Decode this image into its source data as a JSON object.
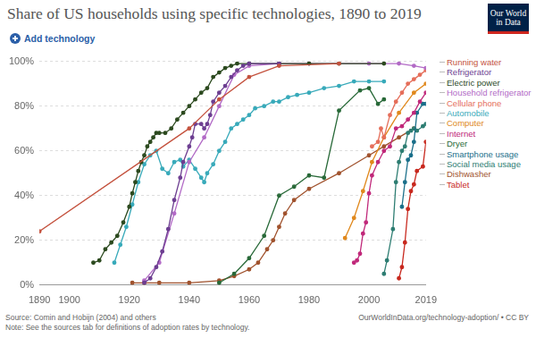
{
  "chart_data": {
    "type": "line",
    "title": "Share of US households using specific technologies, 1890 to 2019",
    "xlim": [
      1890,
      2019
    ],
    "xticks": [
      1890,
      1900,
      1920,
      1940,
      1960,
      1980,
      2000,
      2019
    ],
    "ylim": [
      0,
      100
    ],
    "yticks": [
      {
        "value": 0,
        "label": "0%"
      },
      {
        "value": 20,
        "label": "20%"
      },
      {
        "value": 40,
        "label": "40%"
      },
      {
        "value": 60,
        "label": "60%"
      },
      {
        "value": 80,
        "label": "80%"
      },
      {
        "value": 100,
        "label": "100%"
      }
    ],
    "grid": true,
    "marker": "circle",
    "series": [
      {
        "name": "Running water",
        "color": "#c4523e",
        "x": [
          1890,
          1940,
          1950,
          1960,
          1970,
          1990
        ],
        "values": [
          24,
          70,
          83,
          93,
          98,
          99
        ]
      },
      {
        "name": "Refrigerator",
        "color": "#6d3e91",
        "x": [
          1925,
          1927,
          1929,
          1931,
          1933,
          1935,
          1937,
          1938,
          1940,
          1941,
          1942,
          1944,
          1945,
          1946,
          1947,
          1948,
          1950,
          1952,
          1954,
          1956,
          1958,
          1960,
          1970
        ],
        "values": [
          1,
          3,
          8,
          15,
          25,
          38,
          48,
          55,
          62,
          66,
          72,
          72,
          70,
          72,
          76,
          82,
          86,
          89,
          93,
          96,
          98,
          99,
          99
        ]
      },
      {
        "name": "Electric power",
        "color": "#2c4a1f",
        "x": [
          1908,
          1910,
          1912,
          1914,
          1916,
          1918,
          1920,
          1921,
          1922,
          1923,
          1924,
          1925,
          1926,
          1927,
          1928,
          1929,
          1930,
          1932,
          1934,
          1936,
          1938,
          1940,
          1942,
          1944,
          1946,
          1948,
          1950,
          1952,
          1954,
          1956,
          1960,
          1970,
          1980,
          1990,
          2005
        ],
        "values": [
          10,
          11,
          16,
          19,
          22,
          28,
          35,
          41,
          46,
          51,
          55,
          58,
          62,
          64,
          66,
          68,
          68,
          68,
          70,
          74,
          77,
          80,
          83,
          86,
          88,
          93,
          95,
          97,
          98,
          99,
          99,
          99,
          99,
          99,
          99
        ]
      },
      {
        "name": "Household refrigerator",
        "color": "#b26ac6",
        "x": [
          1925,
          1930,
          1935,
          1940,
          1945,
          1950,
          1955,
          1960,
          1970,
          1980,
          2000,
          2010,
          2015,
          2019
        ],
        "values": [
          2,
          10,
          32,
          55,
          66,
          80,
          94,
          98,
          99,
          99,
          99,
          99,
          98,
          97
        ]
      },
      {
        "name": "Cellular phone",
        "color": "#e56e5a",
        "x": [
          2001,
          2003,
          2004,
          2005,
          2007,
          2009,
          2011,
          2013,
          2015,
          2017,
          2019
        ],
        "values": [
          62,
          64,
          70,
          66,
          76,
          82,
          86,
          90,
          92,
          94,
          96
        ]
      },
      {
        "name": "Automobile",
        "color": "#38aaba",
        "x": [
          1915,
          1917,
          1919,
          1921,
          1923,
          1925,
          1927,
          1929,
          1931,
          1933,
          1935,
          1937,
          1938,
          1940,
          1942,
          1944,
          1945,
          1946,
          1948,
          1950,
          1952,
          1954,
          1956,
          1958,
          1960,
          1962,
          1965,
          1968,
          1970,
          1973,
          1976,
          1980,
          1985,
          1990,
          1995,
          2000,
          2005
        ],
        "values": [
          10,
          18,
          26,
          36,
          46,
          54,
          58,
          60,
          52,
          50,
          55,
          56,
          53,
          56,
          52,
          48,
          46,
          50,
          54,
          60,
          64,
          70,
          72,
          74,
          76,
          79,
          80,
          82,
          82,
          84,
          85,
          86,
          88,
          89,
          91,
          91,
          91
        ]
      },
      {
        "name": "Computer",
        "color": "#e0881c",
        "x": [
          1992,
          1995,
          1998,
          2001,
          2005,
          2010,
          2015,
          2019
        ],
        "values": [
          21,
          30,
          42,
          55,
          66,
          77,
          86,
          90
        ]
      },
      {
        "name": "Internet",
        "color": "#c0287a",
        "x": [
          1995,
          1996,
          1997,
          1998,
          1999,
          2000,
          2001,
          2003,
          2005,
          2007,
          2009,
          2011,
          2013,
          2015,
          2017,
          2019
        ],
        "values": [
          10,
          11,
          14,
          23,
          28,
          41,
          49,
          55,
          60,
          62,
          70,
          71,
          74,
          77,
          82,
          86
        ]
      },
      {
        "name": "Dryer",
        "color": "#286938",
        "x": [
          1950,
          1955,
          1960,
          1965,
          1970,
          1975,
          1980,
          1985,
          1990,
          1997,
          2000,
          2003,
          2005
        ],
        "values": [
          1,
          5,
          12,
          22,
          40,
          44,
          49,
          48,
          78,
          87,
          88,
          81,
          83
        ]
      },
      {
        "name": "Smartphone usage",
        "color": "#1a6f8a",
        "x": [
          2011,
          2012,
          2013,
          2014,
          2015,
          2016,
          2018,
          2019
        ],
        "values": [
          35,
          46,
          56,
          58,
          64,
          77,
          81,
          81
        ]
      },
      {
        "name": "Social media usage",
        "color": "#2d7d72",
        "x": [
          2005,
          2006,
          2008,
          2009,
          2010,
          2011,
          2012,
          2013,
          2014,
          2015,
          2016,
          2018,
          2019
        ],
        "values": [
          5,
          11,
          25,
          46,
          55,
          60,
          62,
          68,
          69,
          70,
          69,
          71,
          72
        ]
      },
      {
        "name": "Dishwasher",
        "color": "#a0522d",
        "x": [
          1921,
          1925,
          1930,
          1940,
          1950,
          1955,
          1960,
          1963,
          1966,
          1968,
          1970,
          1972,
          1975,
          1980,
          1990,
          2000,
          2005,
          2010,
          2015
        ],
        "values": [
          1,
          1,
          1,
          1,
          2,
          4,
          7,
          10,
          16,
          20,
          26,
          32,
          38,
          43,
          50,
          58,
          62,
          66,
          70
        ]
      },
      {
        "name": "Tablet",
        "color": "#c8281e",
        "x": [
          2010,
          2011,
          2012,
          2013,
          2014,
          2015,
          2016,
          2018,
          2019
        ],
        "values": [
          3,
          8,
          19,
          34,
          42,
          45,
          51,
          53,
          64
        ]
      }
    ]
  },
  "page": {
    "button": "Add technology",
    "logo": "Our World in Data",
    "source": "Source: Comin and Hobijn (2004) and others",
    "note": "Note: See the sources tab for definitions of adoption rates by technology.",
    "credit": "OurWorldInData.org/technology-adoption/ • CC BY"
  }
}
